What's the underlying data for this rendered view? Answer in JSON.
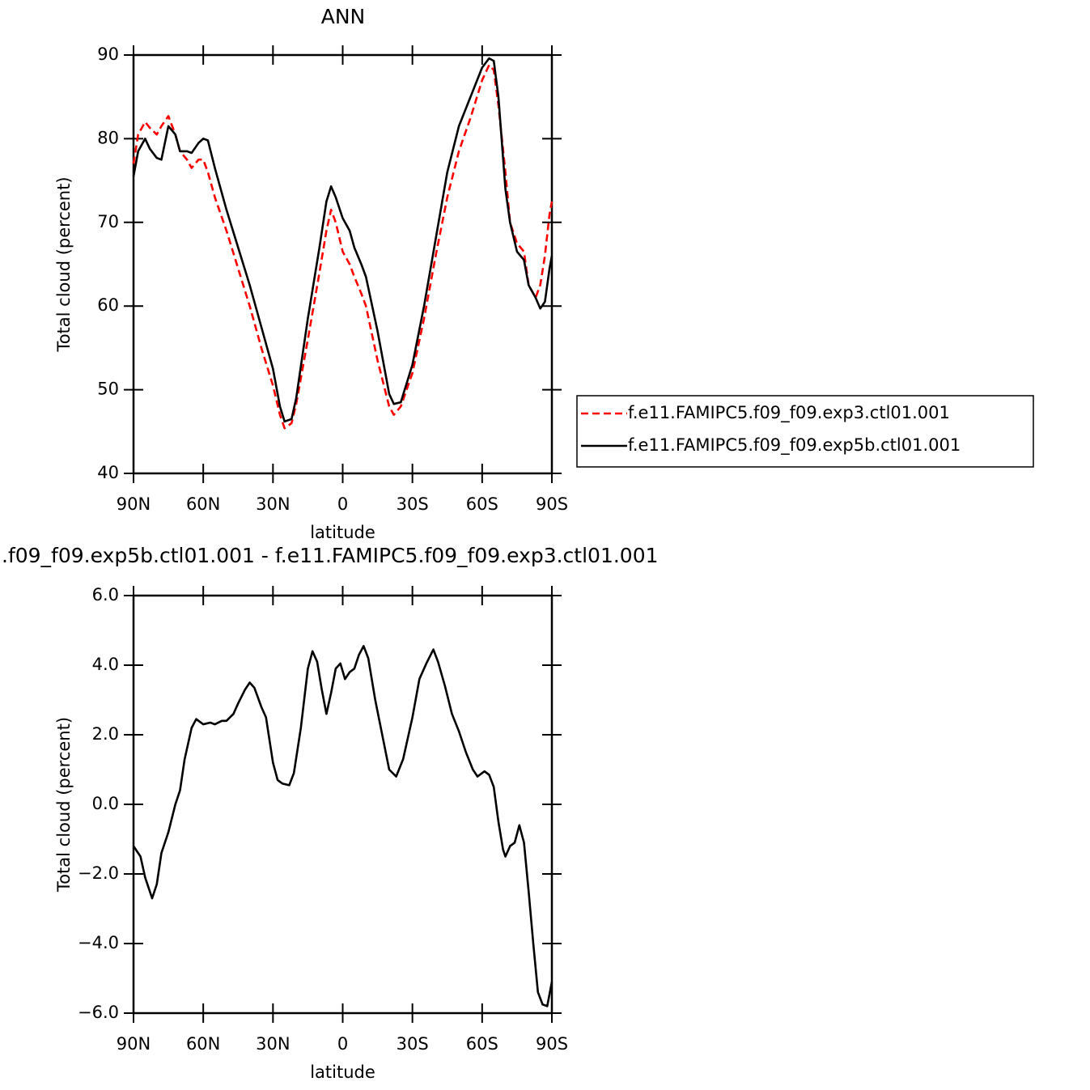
{
  "chart_data": [
    {
      "type": "line",
      "title": "ANN",
      "xlabel": "latitude",
      "ylabel": "Total cloud (percent)",
      "x": [
        90,
        88,
        85,
        83,
        80,
        78,
        75,
        72,
        70,
        67,
        65,
        62,
        60,
        58,
        55,
        50,
        45,
        40,
        35,
        30,
        27,
        25,
        22,
        20,
        15,
        10,
        7,
        5,
        3,
        0,
        -3,
        -5,
        -8,
        -10,
        -15,
        -20,
        -22,
        -25,
        -30,
        -35,
        -40,
        -45,
        -50,
        -55,
        -60,
        -63,
        -65,
        -67,
        -70,
        -72,
        -75,
        -78,
        -80,
        -83,
        -85,
        -87,
        -89,
        -90
      ],
      "series": [
        {
          "name": "f.e11.FAMIPC5.f09_f09.exp3.ctl01.001",
          "color": "#ff0000",
          "style": "dashed",
          "values": [
            77,
            80.5,
            82,
            81.3,
            80.5,
            81.5,
            82.7,
            80.5,
            78.5,
            77.5,
            76.5,
            77.5,
            77.5,
            76,
            73,
            69,
            64.5,
            60,
            55,
            50.5,
            47,
            45.4,
            46,
            48.3,
            56,
            64,
            69,
            71.5,
            70,
            66.5,
            65,
            63.5,
            61.5,
            60,
            53.5,
            48,
            47,
            48,
            52,
            58.5,
            66,
            73,
            78.5,
            82.5,
            87,
            88.8,
            88.2,
            84,
            76,
            70,
            67.5,
            66.5,
            62.5,
            61,
            62.5,
            66,
            71,
            72.5
          ]
        },
        {
          "name": "f.e11.FAMIPC5.f09_f09.exp5b.ctl01.001",
          "color": "#000000",
          "style": "solid",
          "values": [
            75.5,
            78.5,
            80,
            78.8,
            77.7,
            77.5,
            81.5,
            80.5,
            78.5,
            78.5,
            78.3,
            79.5,
            80,
            79.8,
            76.5,
            71.5,
            67,
            62.5,
            57.5,
            52.5,
            48,
            46.2,
            46.5,
            49,
            58.5,
            67,
            72.5,
            74.3,
            73,
            70.5,
            69,
            67,
            65,
            63.5,
            57,
            49.5,
            48.3,
            48.5,
            53,
            60,
            68,
            76,
            81.5,
            85,
            88.5,
            89.6,
            89.3,
            85,
            74,
            70,
            66.5,
            65.5,
            62.5,
            61,
            59.7,
            60.5,
            64.5,
            66
          ]
        }
      ],
      "xlim": [
        90,
        -90
      ],
      "xticks": [
        {
          "value": 90,
          "label": "90N"
        },
        {
          "value": 60,
          "label": "60N"
        },
        {
          "value": 30,
          "label": "30N"
        },
        0,
        {
          "value": -30,
          "label": "30S"
        },
        {
          "value": -60,
          "label": "60S"
        },
        {
          "value": -90,
          "label": "90S"
        }
      ],
      "ylim": [
        40,
        90
      ],
      "yticks": [
        40,
        50,
        60,
        70,
        80,
        90
      ],
      "legend": "right"
    },
    {
      "type": "line",
      "title": ".f09_f09.exp5b.ctl01.001 - f.e11.FAMIPC5.f09_f09.exp3.ctl01.001",
      "xlabel": "latitude",
      "ylabel": "Total cloud (percent)",
      "x": [
        90,
        87,
        85,
        83,
        82,
        80,
        78,
        75,
        72,
        70,
        68,
        65,
        63,
        60,
        57,
        55,
        52,
        50,
        47,
        45,
        42,
        40,
        38,
        35,
        33,
        30,
        28,
        26,
        23,
        21,
        18,
        15,
        13,
        11,
        9,
        7,
        5,
        3,
        1,
        -1,
        -3,
        -5,
        -7,
        -9,
        -11,
        -14,
        -17,
        -20,
        -23,
        -26,
        -30,
        -33,
        -36,
        -39,
        -41,
        -44,
        -47,
        -50,
        -53,
        -56,
        -58,
        -61,
        -63,
        -65,
        -67,
        -69,
        -70,
        -72,
        -74,
        -76,
        -78,
        -80,
        -82,
        -84,
        -86,
        -88,
        -90
      ],
      "series": [
        {
          "color": "#000000",
          "style": "solid",
          "values": [
            -1.2,
            -1.5,
            -2.1,
            -2.5,
            -2.7,
            -2.3,
            -1.4,
            -0.8,
            0,
            0.4,
            1.3,
            2.2,
            2.45,
            2.3,
            2.35,
            2.3,
            2.4,
            2.4,
            2.6,
            2.9,
            3.3,
            3.5,
            3.35,
            2.8,
            2.5,
            1.2,
            0.7,
            0.6,
            0.55,
            0.9,
            2.2,
            3.9,
            4.4,
            4.1,
            3.3,
            2.6,
            3.2,
            3.9,
            4.05,
            3.6,
            3.8,
            3.9,
            4.3,
            4.55,
            4.2,
            3.0,
            2.0,
            1.0,
            0.8,
            1.3,
            2.5,
            3.6,
            4.05,
            4.45,
            4.1,
            3.4,
            2.6,
            2.1,
            1.5,
            1.0,
            0.8,
            0.95,
            0.85,
            0.5,
            -0.5,
            -1.3,
            -1.5,
            -1.2,
            -1.1,
            -0.6,
            -1.1,
            -2.5,
            -4,
            -5.4,
            -5.75,
            -5.8,
            -5.1
          ]
        }
      ],
      "xlim": [
        90,
        -90
      ],
      "xticks": [
        {
          "value": 90,
          "label": "90N"
        },
        {
          "value": 60,
          "label": "60N"
        },
        {
          "value": 30,
          "label": "30N"
        },
        0,
        {
          "value": -30,
          "label": "30S"
        },
        {
          "value": -60,
          "label": "60S"
        },
        {
          "value": -90,
          "label": "90S"
        }
      ],
      "ylim": [
        -6,
        6
      ],
      "yticks": [
        {
          "value": -6,
          "label": "−6.0"
        },
        {
          "value": -4,
          "label": "−4.0"
        },
        {
          "value": -2,
          "label": "−2.0"
        },
        {
          "value": 0,
          "label": "0.0"
        },
        {
          "value": 2,
          "label": "2.0"
        },
        {
          "value": 4,
          "label": "4.0"
        },
        {
          "value": 6,
          "label": "6.0"
        }
      ]
    }
  ]
}
